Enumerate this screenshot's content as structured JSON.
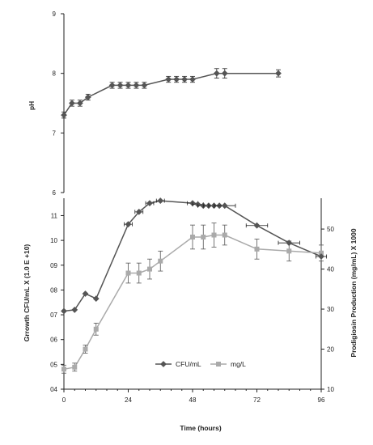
{
  "chart_data": [
    {
      "type": "line",
      "ylabel": "pH",
      "ylim": [
        6,
        9
      ],
      "yticks": [
        "9",
        "8",
        "7",
        "6"
      ],
      "xlim": [
        0,
        96
      ],
      "grid": false,
      "series": [
        {
          "name": "",
          "color": "#555555",
          "marker": "diamond",
          "x": [
            0,
            3,
            6,
            9,
            18,
            21,
            24,
            27,
            30,
            39,
            42,
            45,
            48,
            57,
            60,
            80
          ],
          "y": [
            7.3,
            7.5,
            7.5,
            7.6,
            7.8,
            7.8,
            7.8,
            7.8,
            7.8,
            7.9,
            7.9,
            7.9,
            7.9,
            8.0,
            8.0,
            8.0
          ],
          "yerr": [
            0.05,
            0.05,
            0.05,
            0.05,
            0.05,
            0.05,
            0.05,
            0.05,
            0.05,
            0.05,
            0.05,
            0.05,
            0.05,
            0.08,
            0.08,
            0.06
          ]
        }
      ]
    },
    {
      "type": "line",
      "xlabel": "Time (hours)",
      "xticks": [
        "0",
        "24",
        "48",
        "72",
        "96"
      ],
      "xlim": [
        0,
        96
      ],
      "ylabel": "Grrowth   CFU/mL  X (1.0 E +10)",
      "yticks": [
        "11",
        "10",
        "09",
        "08",
        "07",
        "06",
        "05",
        "04"
      ],
      "ylim": [
        4,
        11.7
      ],
      "y2label": "Prodigiosin Production (mg/mL) X 1000",
      "y2ticks": [
        "50",
        "40",
        "30",
        "20",
        "10"
      ],
      "y2lim": [
        10,
        57.7
      ],
      "legend": "bottom-center",
      "grid": false,
      "series": [
        {
          "name": "CFU/mL",
          "axis": "left",
          "color": "#555555",
          "marker": "diamond",
          "x": [
            0,
            4,
            8,
            12,
            24,
            28,
            32,
            36,
            48,
            50,
            52,
            54,
            56,
            58,
            60,
            72,
            84,
            96
          ],
          "y": [
            7.15,
            7.2,
            7.85,
            7.65,
            10.65,
            11.15,
            11.5,
            11.6,
            11.5,
            11.45,
            11.4,
            11.4,
            11.4,
            11.4,
            11.4,
            10.6,
            9.9,
            9.35
          ],
          "xerr": [
            0,
            0,
            0,
            0,
            1.5,
            1.5,
            1.5,
            1.5,
            2,
            2,
            2,
            2,
            2,
            2,
            4,
            4,
            4,
            2
          ]
        },
        {
          "name": "mg/L",
          "axis": "right",
          "color": "#aaaaaa",
          "marker": "square",
          "x": [
            0,
            4,
            8,
            12,
            24,
            28,
            32,
            36,
            48,
            52,
            56,
            60,
            72,
            84,
            96
          ],
          "y": [
            15,
            15.5,
            20,
            25,
            39,
            39,
            40,
            42,
            48,
            48,
            48.5,
            48.5,
            45,
            44.5,
            44
          ],
          "yerr": [
            1,
            1,
            1,
            1.5,
            2.5,
            2.5,
            2.5,
            2.5,
            3,
            3,
            3,
            2.5,
            2.5,
            2.5,
            2
          ]
        }
      ]
    }
  ]
}
